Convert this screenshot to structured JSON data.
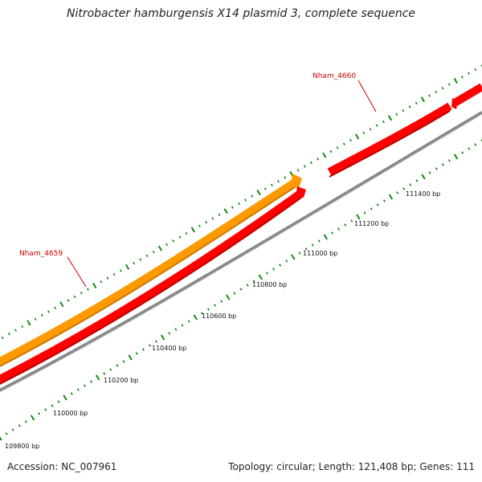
{
  "title": "Nitrobacter hamburgensis X14 plasmid 3, complete sequence",
  "footer": {
    "accession": "Accession: NC_007961",
    "summary": "Topology: circular; Length: 121,408 bp; Genes: 111"
  },
  "colors": {
    "forward_gene": "#ff9900",
    "reverse_gene": "#ff0000",
    "backbone": "#888888",
    "tick": "#118811",
    "label": "#cc0000"
  },
  "genes": [
    {
      "name": "Nham_4659",
      "strand": "reverse"
    },
    {
      "name": "Nham_4660",
      "strand": "reverse"
    }
  ],
  "scale_labels": [
    "109800 bp",
    "110000 bp",
    "110200 bp",
    "110400 bp",
    "110600 bp",
    "110800 bp",
    "111000 bp",
    "111200 bp",
    "111400 bp"
  ]
}
